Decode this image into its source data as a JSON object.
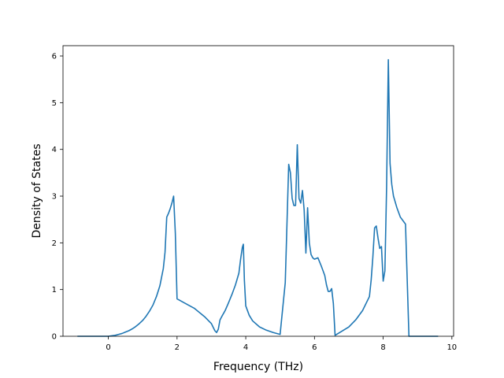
{
  "chart_data": {
    "type": "line",
    "title": "",
    "xlabel": "Frequency (THz)",
    "ylabel": "Density of States",
    "xlim": [
      -1.32,
      10.05
    ],
    "ylim": [
      0,
      6.22
    ],
    "xticks": [
      0,
      2,
      4,
      6,
      8,
      10
    ],
    "yticks": [
      0,
      1,
      2,
      3,
      4,
      5,
      6
    ],
    "grid": false,
    "legend": "none",
    "colors": {
      "line": "#1f77b4",
      "axes": "#000000",
      "background": "#ffffff"
    },
    "series": [
      {
        "x": [
          -0.9,
          -0.5,
          0,
          0.1,
          0.2,
          0.3,
          0.4,
          0.5,
          0.6,
          0.7,
          0.8,
          0.9,
          1.0,
          1.1,
          1.2,
          1.3,
          1.4,
          1.5,
          1.6,
          1.65,
          1.7,
          1.75,
          1.8,
          1.85,
          1.9,
          1.95,
          2.0,
          2.05,
          2.2,
          2.5,
          2.8,
          3.0,
          3.1,
          3.15,
          3.2,
          3.25,
          3.3,
          3.4,
          3.5,
          3.6,
          3.7,
          3.8,
          3.85,
          3.9,
          3.93,
          3.96,
          4.0,
          4.1,
          4.2,
          4.4,
          4.6,
          4.8,
          5.0,
          5.15,
          5.25,
          5.3,
          5.35,
          5.4,
          5.45,
          5.5,
          5.55,
          5.6,
          5.65,
          5.7,
          5.75,
          5.8,
          5.85,
          5.9,
          5.95,
          6.0,
          6.1,
          6.2,
          6.3,
          6.35,
          6.4,
          6.45,
          6.5,
          6.55,
          6.6,
          7.0,
          7.2,
          7.4,
          7.6,
          7.65,
          7.7,
          7.75,
          7.8,
          7.85,
          7.9,
          7.95,
          8.0,
          8.05,
          8.1,
          8.15,
          8.2,
          8.25,
          8.3,
          8.4,
          8.5,
          8.6,
          8.65,
          8.75,
          9.0,
          9.3,
          9.6
        ],
        "y": [
          0,
          0,
          0,
          0.01,
          0.02,
          0.04,
          0.06,
          0.09,
          0.12,
          0.16,
          0.21,
          0.27,
          0.34,
          0.43,
          0.54,
          0.67,
          0.85,
          1.08,
          1.45,
          1.8,
          2.55,
          2.63,
          2.73,
          2.85,
          3.0,
          2.2,
          0.8,
          0.78,
          0.72,
          0.6,
          0.42,
          0.27,
          0.12,
          0.08,
          0.15,
          0.35,
          0.42,
          0.55,
          0.72,
          0.9,
          1.1,
          1.35,
          1.65,
          1.9,
          1.97,
          1.2,
          0.65,
          0.45,
          0.33,
          0.2,
          0.13,
          0.08,
          0.04,
          1.15,
          3.68,
          3.5,
          2.95,
          2.8,
          2.8,
          4.1,
          2.95,
          2.85,
          3.12,
          2.7,
          1.78,
          2.75,
          2.0,
          1.75,
          1.68,
          1.65,
          1.68,
          1.5,
          1.3,
          1.1,
          0.96,
          0.96,
          1.02,
          0.7,
          0.02,
          0.2,
          0.35,
          0.55,
          0.85,
          1.2,
          1.7,
          2.32,
          2.36,
          2.1,
          1.88,
          1.92,
          1.18,
          1.4,
          3.2,
          5.92,
          3.7,
          3.25,
          3.0,
          2.75,
          2.55,
          2.45,
          2.4,
          0,
          0,
          0,
          0
        ]
      }
    ]
  }
}
